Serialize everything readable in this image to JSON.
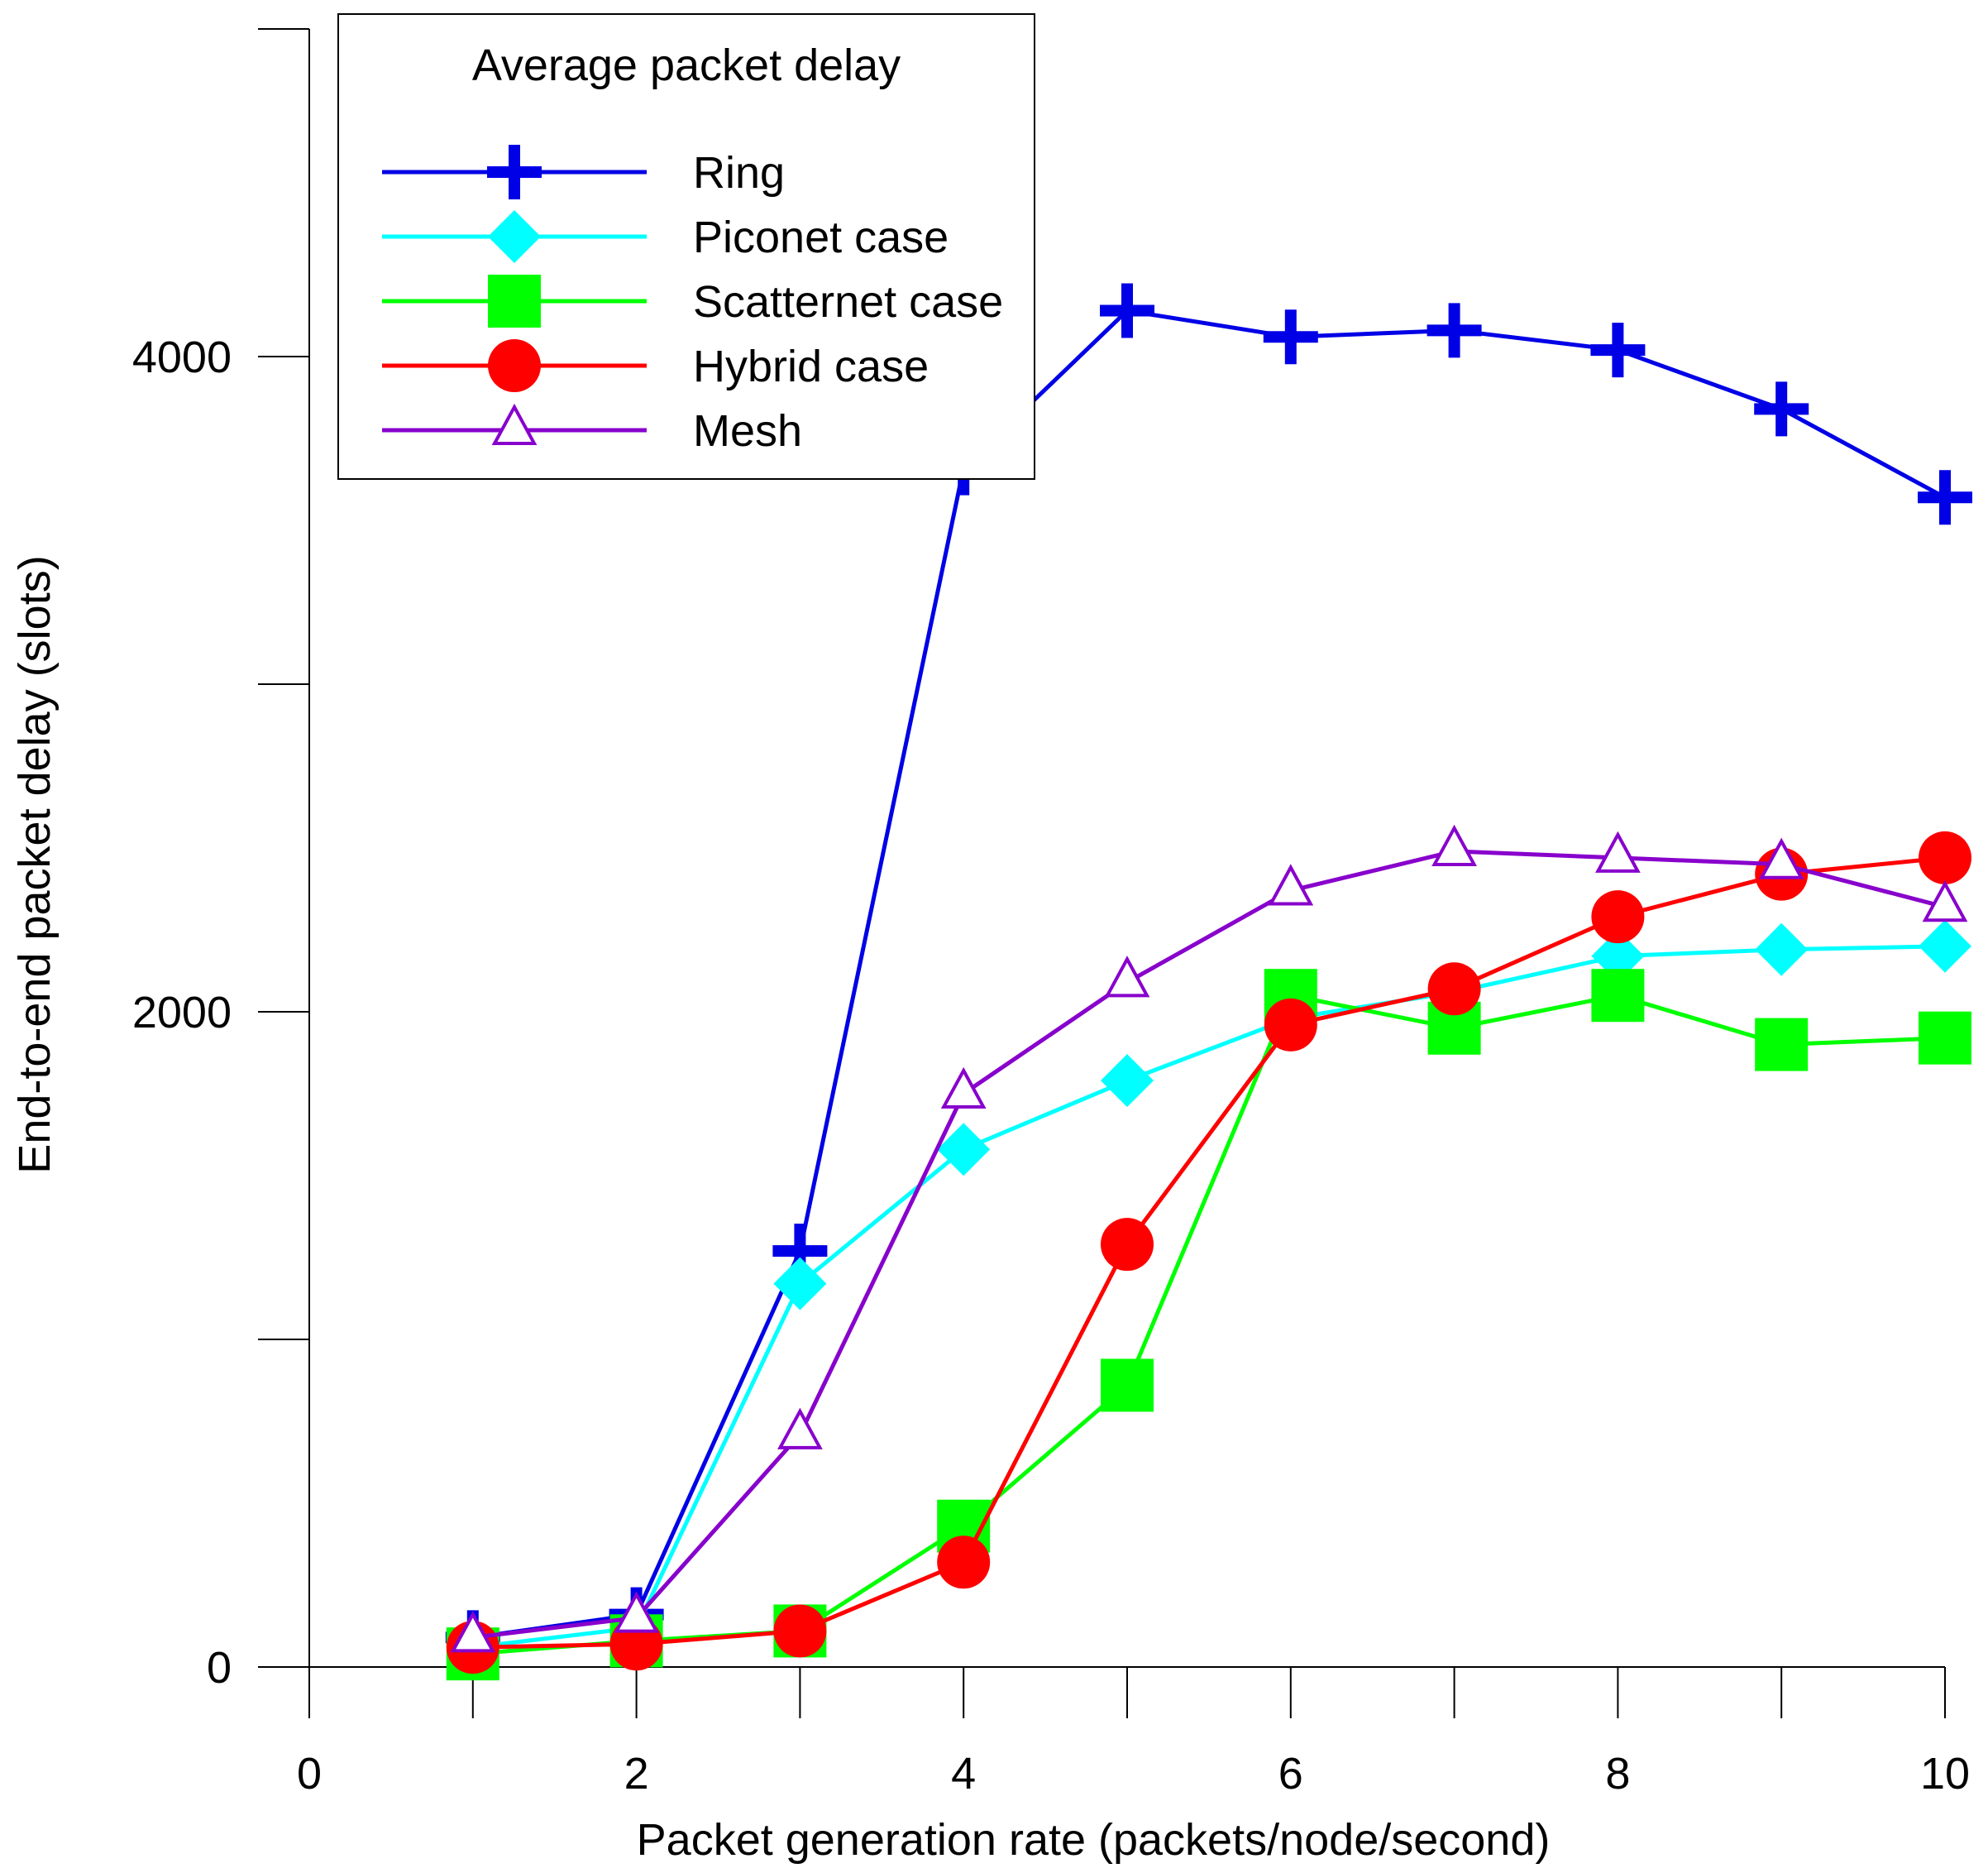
{
  "chart_data": {
    "type": "line",
    "title": "",
    "xlabel": "Packet generation rate (packets/node/second)",
    "ylabel": "End-to-end packet delay (slots)",
    "xlim": [
      0,
      10
    ],
    "ylim": [
      0,
      5000
    ],
    "x_ticks": [
      0,
      1,
      2,
      3,
      4,
      5,
      6,
      7,
      8,
      9,
      10
    ],
    "x_tick_labels": [
      "0",
      "",
      "2",
      "",
      "4",
      "",
      "6",
      "",
      "8",
      "",
      "10"
    ],
    "y_ticks": [
      0,
      1000,
      2000,
      3000,
      4000,
      5000
    ],
    "y_tick_labels": [
      "0",
      "",
      "2000",
      "",
      "4000",
      ""
    ],
    "legend_title": "Average packet delay",
    "legend_position": "top-left",
    "x": [
      1,
      2,
      3,
      4,
      5,
      6,
      7,
      8,
      9,
      10
    ],
    "series": [
      {
        "name": "Ring",
        "color": "#0000e6",
        "marker": "plus",
        "values": [
          90,
          160,
          1270,
          3660,
          4140,
          4060,
          4080,
          4020,
          3840,
          3570
        ]
      },
      {
        "name": "Piconet case",
        "color": "#00ffff",
        "marker": "diamond",
        "values": [
          60,
          120,
          1170,
          1580,
          1790,
          1980,
          2060,
          2170,
          2190,
          2200
        ]
      },
      {
        "name": "Scatternet case",
        "color": "#00ff00",
        "marker": "square",
        "values": [
          40,
          80,
          110,
          430,
          860,
          2050,
          1950,
          2050,
          1900,
          1920
        ]
      },
      {
        "name": "Hybrid case",
        "color": "#ff0000",
        "marker": "circle",
        "values": [
          60,
          70,
          110,
          320,
          1290,
          1960,
          2070,
          2290,
          2420,
          2470
        ]
      },
      {
        "name": "Mesh",
        "color": "#8800cc",
        "marker": "triangle",
        "values": [
          90,
          150,
          710,
          1750,
          2090,
          2370,
          2490,
          2470,
          2450,
          2320
        ]
      }
    ]
  }
}
